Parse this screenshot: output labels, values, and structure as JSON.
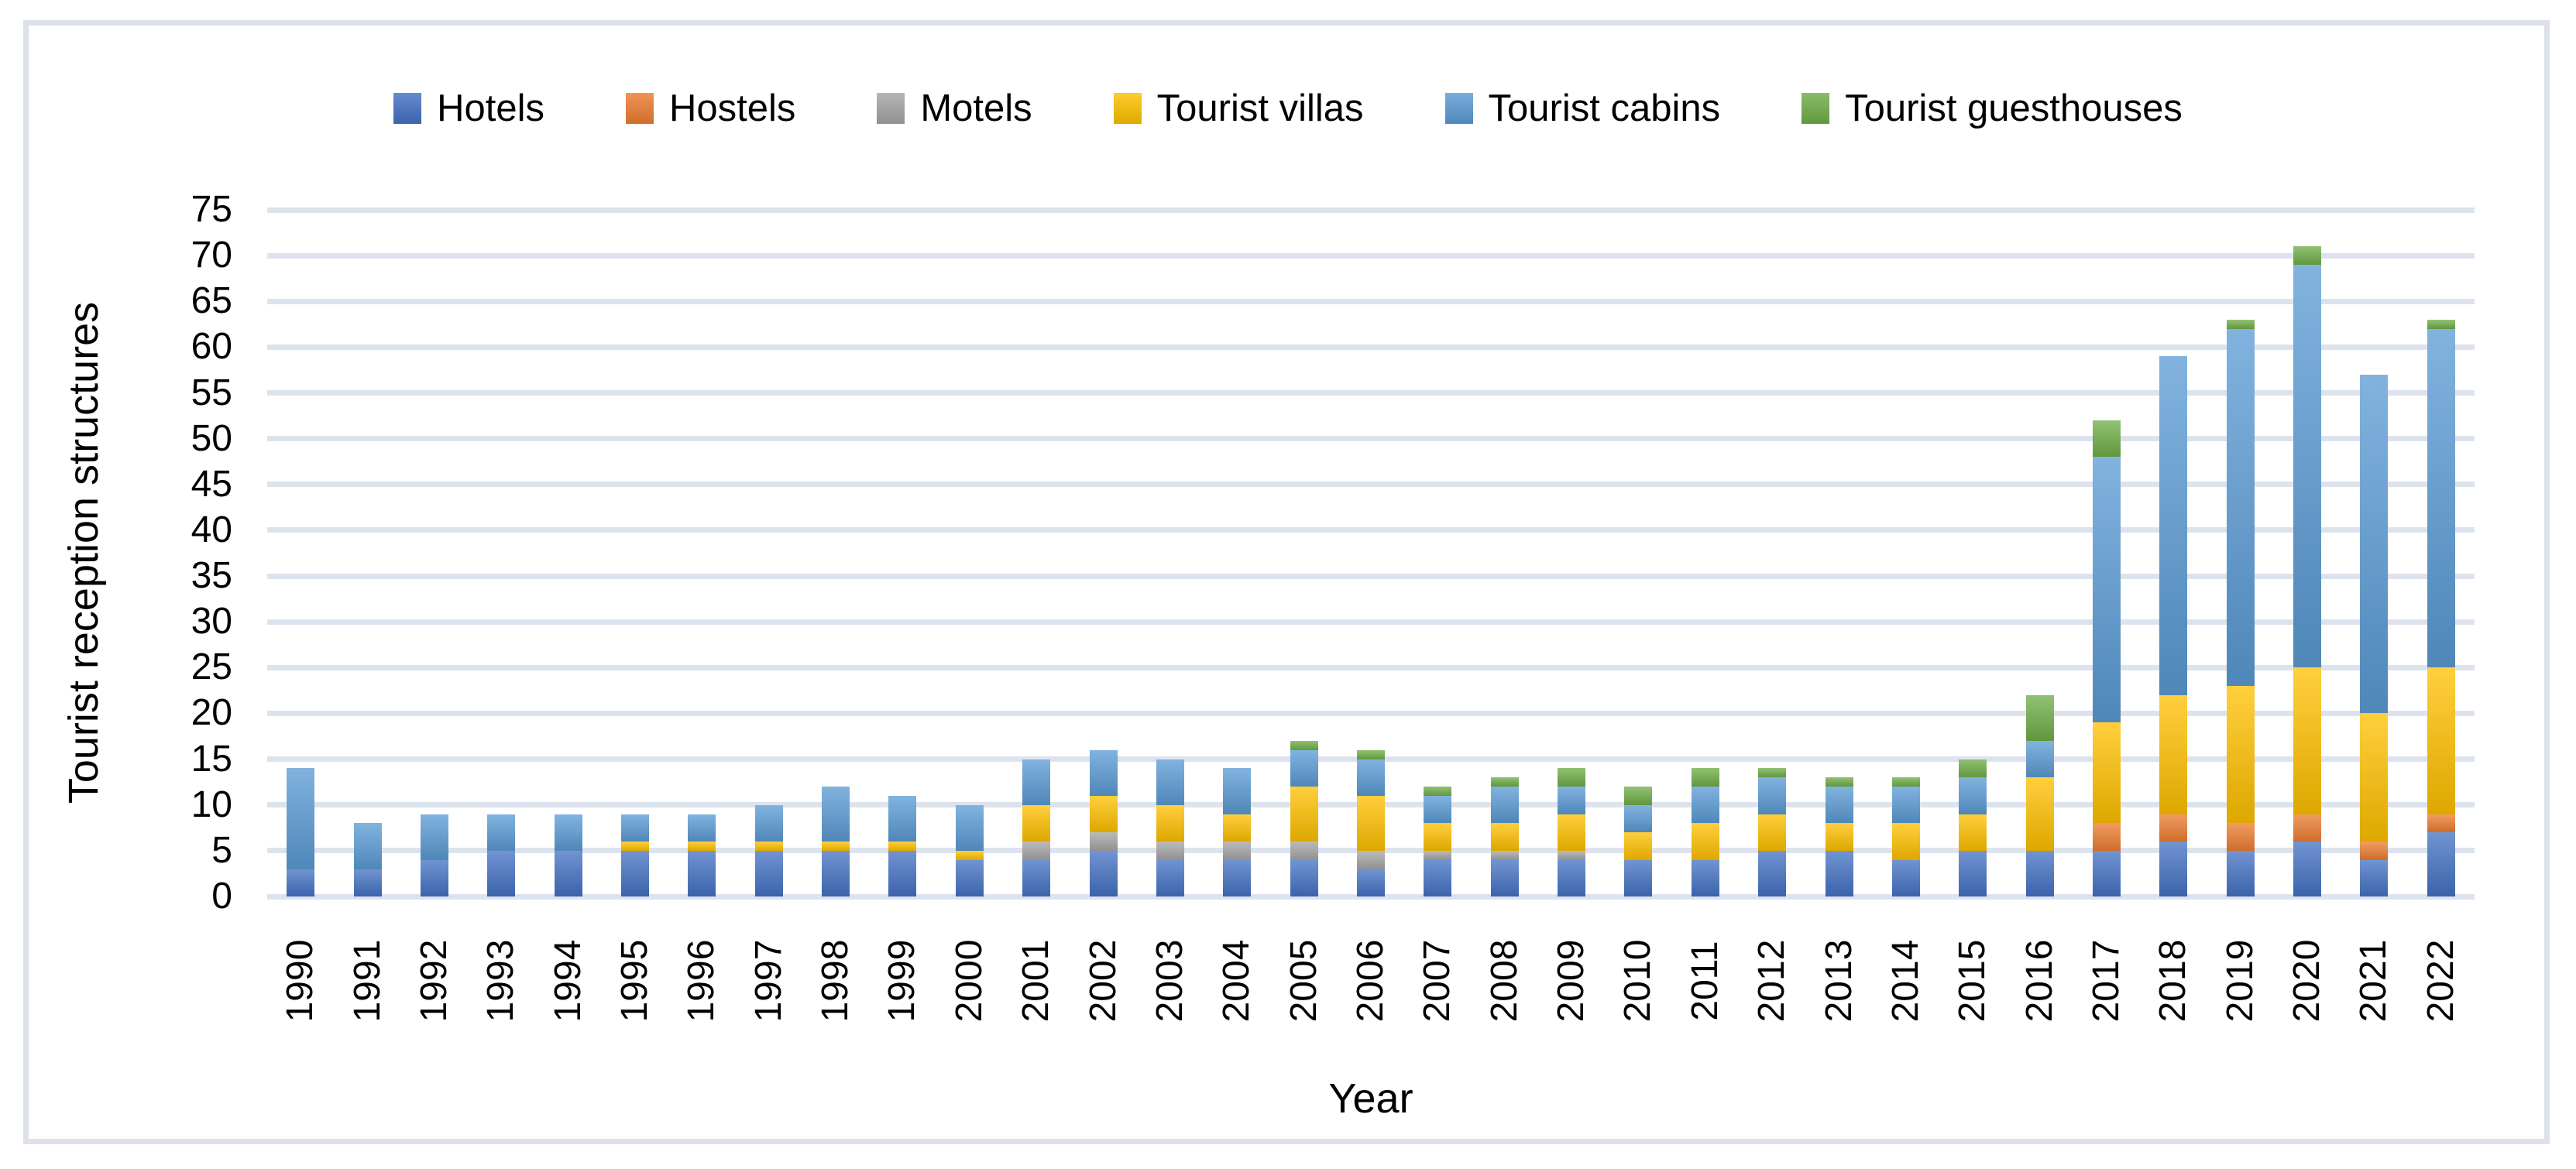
{
  "y_axis": {
    "title": "Tourist reception structures",
    "tick_step": 5,
    "max": 75
  },
  "x_axis": {
    "title": "Year"
  },
  "colors": {
    "gridline": "#dde3ee",
    "frame_border": "#dce1ea",
    "text": "#000000"
  },
  "chart_data": {
    "type": "bar",
    "stacked": true,
    "title": "",
    "xlabel": "Year",
    "ylabel": "Tourist reception structures",
    "ylim": [
      0,
      75
    ],
    "ytick_step": 5,
    "grid": true,
    "legend_position": "top",
    "categories": [
      1990,
      1991,
      1992,
      1993,
      1994,
      1995,
      1996,
      1997,
      1998,
      1999,
      2000,
      2001,
      2002,
      2003,
      2004,
      2005,
      2006,
      2007,
      2008,
      2009,
      2010,
      2011,
      2012,
      2013,
      2014,
      2015,
      2016,
      2017,
      2018,
      2019,
      2020,
      2021,
      2022
    ],
    "series": [
      {
        "name": "Hotels",
        "color": "#4472C4",
        "values": [
          3,
          3,
          4,
          5,
          5,
          5,
          5,
          5,
          5,
          5,
          4,
          4,
          5,
          4,
          4,
          4,
          3,
          4,
          4,
          4,
          4,
          4,
          5,
          5,
          4,
          5,
          5,
          5,
          6,
          5,
          6,
          4,
          7
        ]
      },
      {
        "name": "Hostels",
        "color": "#ED7D31",
        "values": [
          0,
          0,
          0,
          0,
          0,
          0,
          0,
          0,
          0,
          0,
          0,
          0,
          0,
          0,
          0,
          0,
          0,
          0,
          0,
          0,
          0,
          0,
          0,
          0,
          0,
          0,
          0,
          3,
          3,
          3,
          3,
          2,
          2
        ]
      },
      {
        "name": "Motels",
        "color": "#A5A5A5",
        "values": [
          0,
          0,
          0,
          0,
          0,
          0,
          0,
          0,
          0,
          0,
          0,
          2,
          2,
          2,
          2,
          2,
          2,
          1,
          1,
          1,
          0,
          0,
          0,
          0,
          0,
          0,
          0,
          0,
          0,
          0,
          0,
          0,
          0
        ]
      },
      {
        "name": "Tourist villas",
        "color": "#FFC000",
        "values": [
          0,
          0,
          0,
          0,
          0,
          1,
          1,
          1,
          1,
          1,
          1,
          4,
          4,
          4,
          3,
          6,
          6,
          3,
          3,
          4,
          3,
          4,
          4,
          3,
          4,
          4,
          8,
          11,
          13,
          15,
          16,
          14,
          16
        ]
      },
      {
        "name": "Tourist cabins",
        "color": "#5B9BD5",
        "values": [
          11,
          5,
          5,
          4,
          4,
          3,
          3,
          4,
          6,
          5,
          5,
          5,
          5,
          5,
          5,
          4,
          4,
          3,
          4,
          3,
          3,
          4,
          4,
          4,
          4,
          4,
          4,
          29,
          37,
          39,
          44,
          37,
          37
        ]
      },
      {
        "name": "Tourist guesthouses",
        "color": "#70AD47",
        "values": [
          0,
          0,
          0,
          0,
          0,
          0,
          0,
          0,
          0,
          0,
          0,
          0,
          0,
          0,
          0,
          1,
          1,
          1,
          1,
          2,
          2,
          2,
          1,
          1,
          1,
          2,
          5,
          4,
          0,
          1,
          2,
          0,
          1
        ]
      }
    ]
  }
}
